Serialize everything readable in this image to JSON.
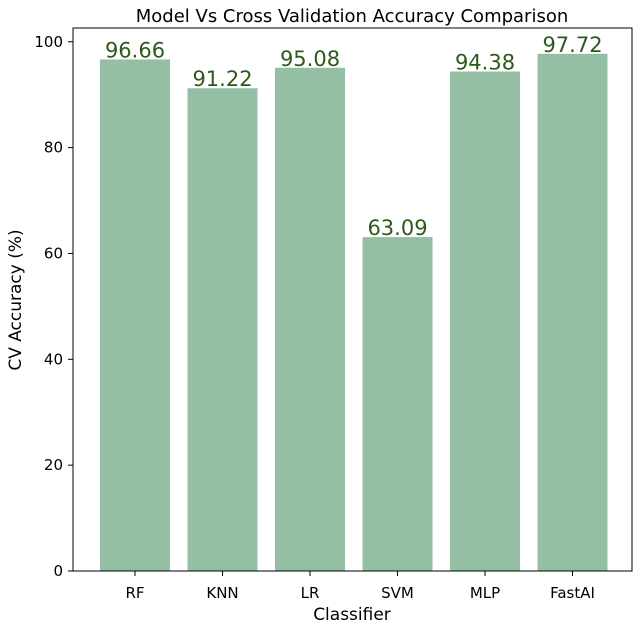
{
  "chart_data": {
    "type": "bar",
    "title": "Model Vs Cross Validation Accuracy Comparison",
    "xlabel": "Classifier",
    "ylabel": "CV Accuracy (%)",
    "categories": [
      "RF",
      "KNN",
      "LR",
      "SVM",
      "MLP",
      "FastAI"
    ],
    "values": [
      96.66,
      91.22,
      95.08,
      63.09,
      94.38,
      97.72
    ],
    "data_labels": [
      "96.66",
      "91.22",
      "95.08",
      "63.09",
      "94.38",
      "97.72"
    ],
    "ylim": [
      0,
      102.6
    ],
    "yticks": [
      0,
      20,
      40,
      60,
      80,
      100
    ],
    "grid": false,
    "legend": "none",
    "bar_color": "#95bfa5",
    "label_color": "#2d5a1b"
  }
}
